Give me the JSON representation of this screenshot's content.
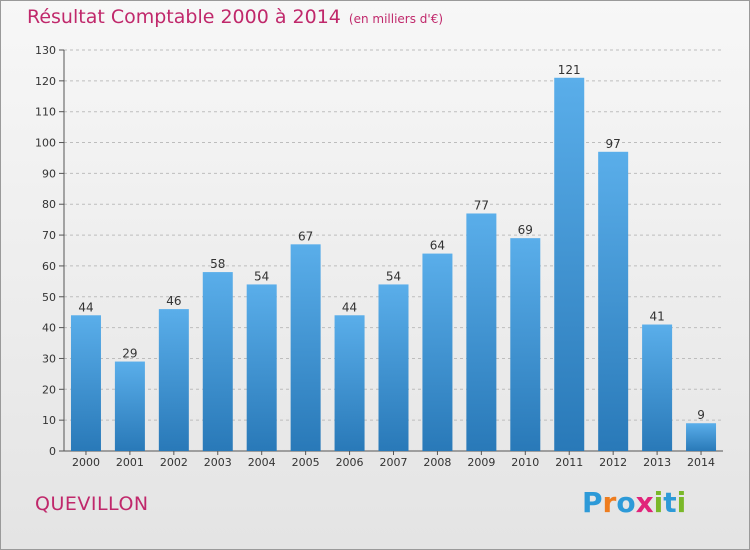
{
  "page_title": "Résultat Comptable 2000 à 2014",
  "page_subtitle": "(en milliers d'€)",
  "commune": "QUEVILLON",
  "brand": {
    "letters": [
      "P",
      "r",
      "o",
      "x",
      "i",
      "t",
      "i"
    ],
    "colors": [
      "#2d9ad8",
      "#ee7d1f",
      "#2d9ad8",
      "#e1237a",
      "#7ab829",
      "#2d9ad8",
      "#7ab829"
    ]
  },
  "colors": {
    "bar_light": "#5aaeea",
    "bar_dark": "#2979b8",
    "title": "#c0286b",
    "grid": "#bdbdbd"
  },
  "chart_data": {
    "type": "bar",
    "title": "Résultat Comptable 2000 à 2014",
    "subtitle": "(en milliers d'€)",
    "categories": [
      "2000",
      "2001",
      "2002",
      "2003",
      "2004",
      "2005",
      "2006",
      "2007",
      "2008",
      "2009",
      "2010",
      "2011",
      "2012",
      "2013",
      "2014"
    ],
    "values": [
      44,
      29,
      46,
      58,
      54,
      67,
      44,
      54,
      64,
      77,
      69,
      121,
      97,
      41,
      9
    ],
    "ylim": [
      0,
      130
    ],
    "yticks": [
      0,
      10,
      20,
      30,
      40,
      50,
      60,
      70,
      80,
      90,
      100,
      110,
      120,
      130
    ],
    "grid": true,
    "data_labels": true
  }
}
